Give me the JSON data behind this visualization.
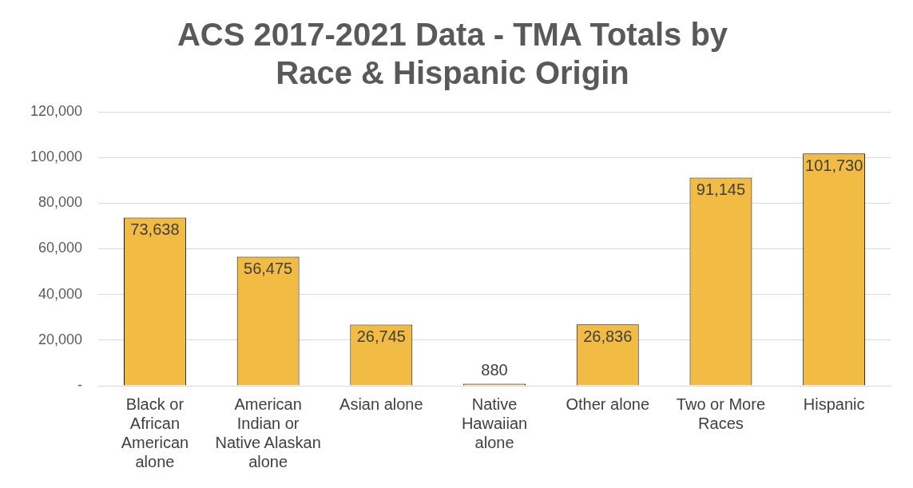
{
  "chart_data": {
    "type": "bar",
    "title": "ACS 2017-2021 Data - TMA Totals by Race & Hispanic Origin",
    "categories": [
      "Black or African American alone",
      "American Indian or Native Alaskan alone",
      "Asian alone",
      "Native Hawaiian alone",
      "Other alone",
      "Two or More Races",
      "Hispanic"
    ],
    "values": [
      73638,
      56475,
      26745,
      880,
      26836,
      91145,
      101730
    ],
    "color": "#f2bb44",
    "ylim": [
      0,
      120000
    ],
    "yticks": [
      {
        "value": 0,
        "label": "-"
      },
      {
        "value": 20000,
        "label": "20,000"
      },
      {
        "value": 40000,
        "label": "40,000"
      },
      {
        "value": 60000,
        "label": "60,000"
      },
      {
        "value": 80000,
        "label": "80,000"
      },
      {
        "value": 100000,
        "label": "100,000"
      },
      {
        "value": 120000,
        "label": "120,000"
      }
    ],
    "value_labels": [
      "73,638",
      "56,475",
      "26,745",
      "880",
      "26,836",
      "91,145",
      "101,730"
    ],
    "grid": "y",
    "legend": false
  }
}
